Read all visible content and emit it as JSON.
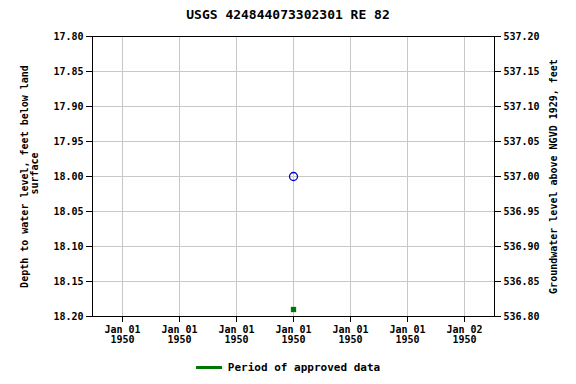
{
  "chart_data": {
    "type": "scatter",
    "title": "USGS 424844073302301 RE  82",
    "categories": [
      "Jan 01\n1950",
      "Jan 01\n1950",
      "Jan 01\n1950",
      "Jan 01\n1950",
      "Jan 01\n1950",
      "Jan 01\n1950",
      "Jan 02\n1950"
    ],
    "series": [
      {
        "color": "#0000cc",
        "marker": "open_circle",
        "values": [
          null,
          null,
          null,
          18.0,
          null,
          null,
          null
        ]
      },
      {
        "name": "Period of approved data",
        "color": "#007700",
        "marker": "square",
        "values": [
          null,
          null,
          null,
          18.19,
          null,
          null,
          null
        ]
      }
    ],
    "ylabel": "Depth to water level, feet below land\n surface",
    "y2label": "Groundwater level above NGVD 1929, feet",
    "ylim": [
      18.2,
      17.8
    ],
    "yticks": [
      {
        "value": 17.8,
        "label": "17.80"
      },
      {
        "value": 17.85,
        "label": "17.85"
      },
      {
        "value": 17.9,
        "label": "17.90"
      },
      {
        "value": 17.95,
        "label": "17.95"
      },
      {
        "value": 18.0,
        "label": "18.00"
      },
      {
        "value": 18.05,
        "label": "18.05"
      },
      {
        "value": 18.1,
        "label": "18.10"
      },
      {
        "value": 18.15,
        "label": "18.15"
      },
      {
        "value": 18.2,
        "label": "18.20"
      }
    ],
    "y2lim": [
      536.8,
      537.2
    ],
    "y2ticks": [
      {
        "value": 537.2,
        "label": "537.20"
      },
      {
        "value": 537.15,
        "label": "537.15"
      },
      {
        "value": 537.1,
        "label": "537.10"
      },
      {
        "value": 537.05,
        "label": "537.05"
      },
      {
        "value": 537.0,
        "label": "537.00"
      },
      {
        "value": 536.95,
        "label": "536.95"
      },
      {
        "value": 536.9,
        "label": "536.90"
      },
      {
        "value": 536.85,
        "label": "536.85"
      },
      {
        "value": 536.8,
        "label": "536.80"
      }
    ],
    "grid": true,
    "legend": "bottom"
  }
}
